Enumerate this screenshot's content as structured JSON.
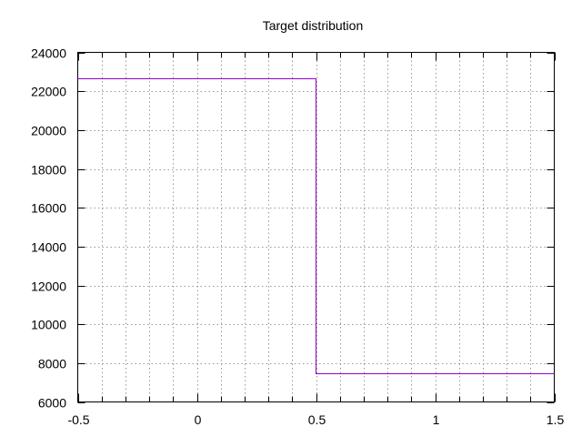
{
  "chart_data": {
    "type": "line",
    "title": "Target distribution",
    "xlabel": "",
    "ylabel": "",
    "xlim": [
      -0.5,
      1.5
    ],
    "ylim": [
      6000,
      24000
    ],
    "x_ticks": [
      -0.5,
      0,
      0.5,
      1,
      1.5
    ],
    "x_tick_labels": [
      "-0.5",
      "0",
      "0.5",
      "1",
      "1.5"
    ],
    "x_minor_step": 0.1,
    "y_ticks": [
      6000,
      8000,
      10000,
      12000,
      14000,
      16000,
      18000,
      20000,
      22000,
      24000
    ],
    "y_tick_labels": [
      "6000",
      "8000",
      "10000",
      "12000",
      "14000",
      "16000",
      "18000",
      "20000",
      "22000",
      "24000"
    ],
    "grid": true,
    "legend": "none",
    "series": [
      {
        "color": "#9400d3",
        "step": true,
        "x": [
          -0.5,
          0.5,
          0.5,
          1.5
        ],
        "y": [
          22650,
          22650,
          7500,
          7500
        ]
      }
    ]
  }
}
